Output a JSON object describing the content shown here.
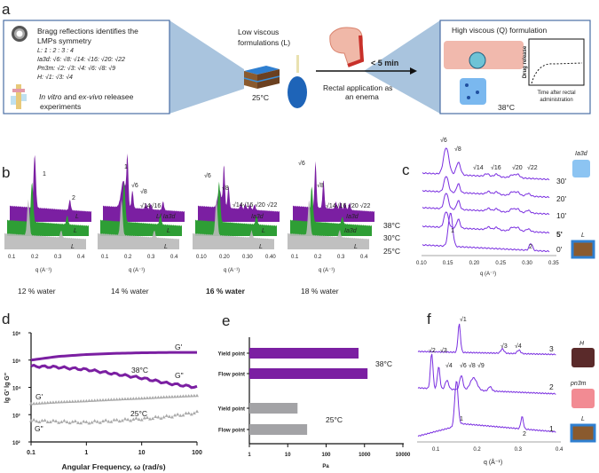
{
  "colors": {
    "purple": "#7b1fa2",
    "spectrum": "#7a2fe0",
    "green": "#2e9e35",
    "grey": "#b9b9b9",
    "panel_blue": "#a9c4de",
    "box_border": "#4a6fa5"
  },
  "panel_a": {
    "label": "a",
    "box1": {
      "line1": "Bragg reflections identifies the",
      "line2": "LMPs symmetry",
      "l_ratio": "L: 1 : 2 : 3 : 4",
      "ia3d_ratio": "Ia3d: √6: √8: √14: √16: √20: √22",
      "pn3m_ratio": "Pn3m: √2: √3: √4: √6: √8: √9",
      "h_ratio": "H: √1: √3: √4",
      "exp1_it": "In vitro",
      "exp1_rest": " and ",
      "exp1_it2": "ex-vivo",
      "exp1_end": " releasee",
      "exp2": "experiments"
    },
    "low_viscous_1": "Low viscous",
    "low_viscous_2": "formulations (L)",
    "temp_low": "25°C",
    "time": "< 5 min",
    "rectal_1": "Rectal application as",
    "rectal_2": "an enema",
    "box2": {
      "title": "High viscous (Q) formulation",
      "temp": "38°C",
      "graph_ylabel": "Drug release",
      "graph_x1": "Time after rectal",
      "graph_x2": "administration"
    }
  },
  "panel_b": {
    "label": "b",
    "axis_label": "q (A⁻¹)",
    "temps": [
      "38°C",
      "30°C",
      "25°C"
    ],
    "groups": [
      {
        "water": "12 % water",
        "bold": false,
        "ticks": [
          "0.1",
          "0.2",
          "0.3",
          "0.4"
        ],
        "annotations": [
          "1",
          "2"
        ],
        "phase_labels": [
          "L",
          "L",
          "L"
        ]
      },
      {
        "water": "14 % water",
        "bold": false,
        "ticks": [
          "0.1",
          "0.2",
          "0.3",
          "0.4"
        ],
        "annotations": [
          "√6",
          "1",
          "√8",
          "√14√16"
        ],
        "phase_labels": [
          "L/ Ia3d",
          "L",
          "L"
        ]
      },
      {
        "water": "16 % water",
        "bold": true,
        "ticks": [
          "0.10",
          "0.20",
          "0.30",
          "0.40"
        ],
        "annotations": [
          "√6",
          "√8",
          "√14√16 √20 √22"
        ],
        "phase_labels": [
          "Ia3d",
          "L",
          "L"
        ]
      },
      {
        "water": "18 % water",
        "bold": false,
        "ticks": [
          "0.1",
          "0.2",
          "0.3",
          "0.4"
        ],
        "annotations": [
          "√6",
          "√8",
          "√14√16 √20 √22"
        ],
        "phase_labels": [
          "Ia3d",
          "Ia3d",
          "L"
        ]
      }
    ]
  },
  "panel_c": {
    "label": "c",
    "peak_labels": [
      "√6",
      "√8",
      "√14",
      "√16",
      "√20",
      "√22",
      "1",
      "2"
    ],
    "times": [
      "30'",
      "20'",
      "10'",
      "5'",
      "0'"
    ],
    "phase_top": "Ia3d",
    "phase_bottom": "L",
    "xticks": [
      "0.10",
      "0.15",
      "0.20",
      "0.25",
      "0.30",
      "0.35"
    ],
    "xlabel": "q (A⁻¹)"
  },
  "panel_f": {
    "label": "f",
    "peak_labels_3": [
      "√1",
      "√3",
      "√4"
    ],
    "peak_labels_2": [
      "√2",
      "√3",
      "√4",
      "√6",
      "√8",
      "√9"
    ],
    "peak_labels_1": [
      "1",
      "2"
    ],
    "curve_ids": [
      "3",
      "2",
      "1"
    ],
    "phases": [
      "H",
      "pn3m",
      "L"
    ],
    "xticks": [
      "0.1",
      "0.2",
      "0.3",
      "0.4"
    ],
    "xlabel": "q (Å⁻¹)"
  },
  "chart_data": [
    {
      "panel": "d",
      "label": "d",
      "type": "line",
      "xlabel": "Angular Frequency, ω (rad/s)",
      "ylabel": "lg G' lg G\"",
      "xscale": "log",
      "yscale": "log",
      "xlim": [
        0.1,
        100
      ],
      "ylim": [
        100,
        1000000
      ],
      "xticks": [
        "0.1",
        "1",
        "10",
        "100"
      ],
      "yticks": [
        "10²",
        "10³",
        "10⁴",
        "10⁵",
        "10⁶"
      ],
      "x": [
        0.1,
        0.3,
        1,
        3,
        10,
        30,
        100
      ],
      "series": [
        {
          "name": "G' 38°C",
          "label": "G'",
          "values": [
            100000,
            135000,
            160000,
            175000,
            185000,
            190000,
            190000
          ]
        },
        {
          "name": "G\" 38°C",
          "label": "G\"",
          "values": [
            60000,
            55000,
            45000,
            32000,
            22000,
            14000,
            10000
          ]
        },
        {
          "name": "G' 25°C",
          "label": "G'",
          "values": [
            2500,
            2900,
            3200,
            3600,
            4000,
            4500,
            5000
          ]
        },
        {
          "name": "G\" 25°C",
          "label": "G\"",
          "values": [
            600,
            560,
            520,
            600,
            700,
            850,
            1200
          ]
        }
      ],
      "annotations": [
        "38°C",
        "25°C"
      ]
    },
    {
      "panel": "e",
      "label": "e",
      "type": "bar",
      "orientation": "horizontal",
      "xscale": "log",
      "xlabel": "Pa",
      "xlim": [
        1,
        10000
      ],
      "xticks": [
        "1",
        "10",
        "100",
        "1000",
        "10000"
      ],
      "categories": [
        "Yield point",
        "Flow point",
        "Yield point",
        "Flow point"
      ],
      "groups": [
        "38°C",
        "38°C",
        "25°C",
        "25°C"
      ],
      "values": [
        700,
        1200,
        18,
        32
      ],
      "annotations": [
        "38°C",
        "25°C"
      ]
    }
  ]
}
